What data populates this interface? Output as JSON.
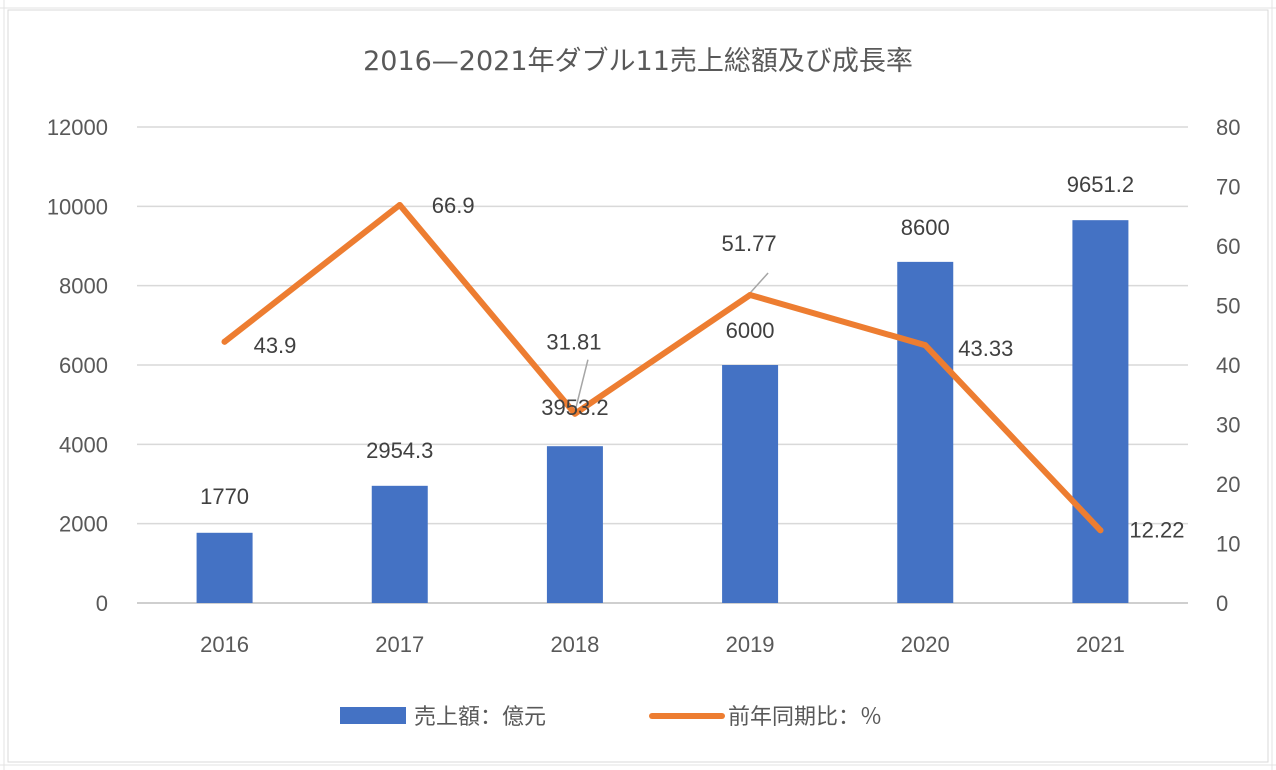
{
  "chart_data": {
    "type": "bar",
    "title": "2016—2021年ダブル11売上総額及び成長率",
    "categories": [
      "2016",
      "2017",
      "2018",
      "2019",
      "2020",
      "2021"
    ],
    "series": [
      {
        "name": "売上額：億元",
        "type": "bar",
        "axis": "left",
        "color": "#4472C4",
        "values": [
          1770,
          2954.3,
          3953.2,
          6000,
          8600,
          9651.2
        ],
        "labels": [
          "1770",
          "2954.3",
          "3953.2",
          "6000",
          "8600",
          "9651.2"
        ]
      },
      {
        "name": "前年同期比：％",
        "type": "line",
        "axis": "right",
        "color": "#ED7D31",
        "values": [
          43.9,
          66.9,
          31.81,
          51.77,
          43.33,
          12.22
        ],
        "labels": [
          "43.9",
          "66.9",
          "31.81",
          "51.77",
          "43.33",
          "12.22"
        ]
      }
    ],
    "y_left": {
      "ylim": [
        0,
        12000
      ],
      "ticks": [
        0,
        2000,
        4000,
        6000,
        8000,
        10000,
        12000
      ]
    },
    "y_right": {
      "ylim": [
        0,
        80
      ],
      "ticks": [
        0,
        10,
        20,
        30,
        40,
        50,
        60,
        70,
        80
      ]
    },
    "grid": true,
    "legend_position": "bottom",
    "colors": {
      "bar": "#4472C4",
      "line": "#ED7D31",
      "grid": "#d9d9d9",
      "leader": "#a6a6a6"
    }
  }
}
